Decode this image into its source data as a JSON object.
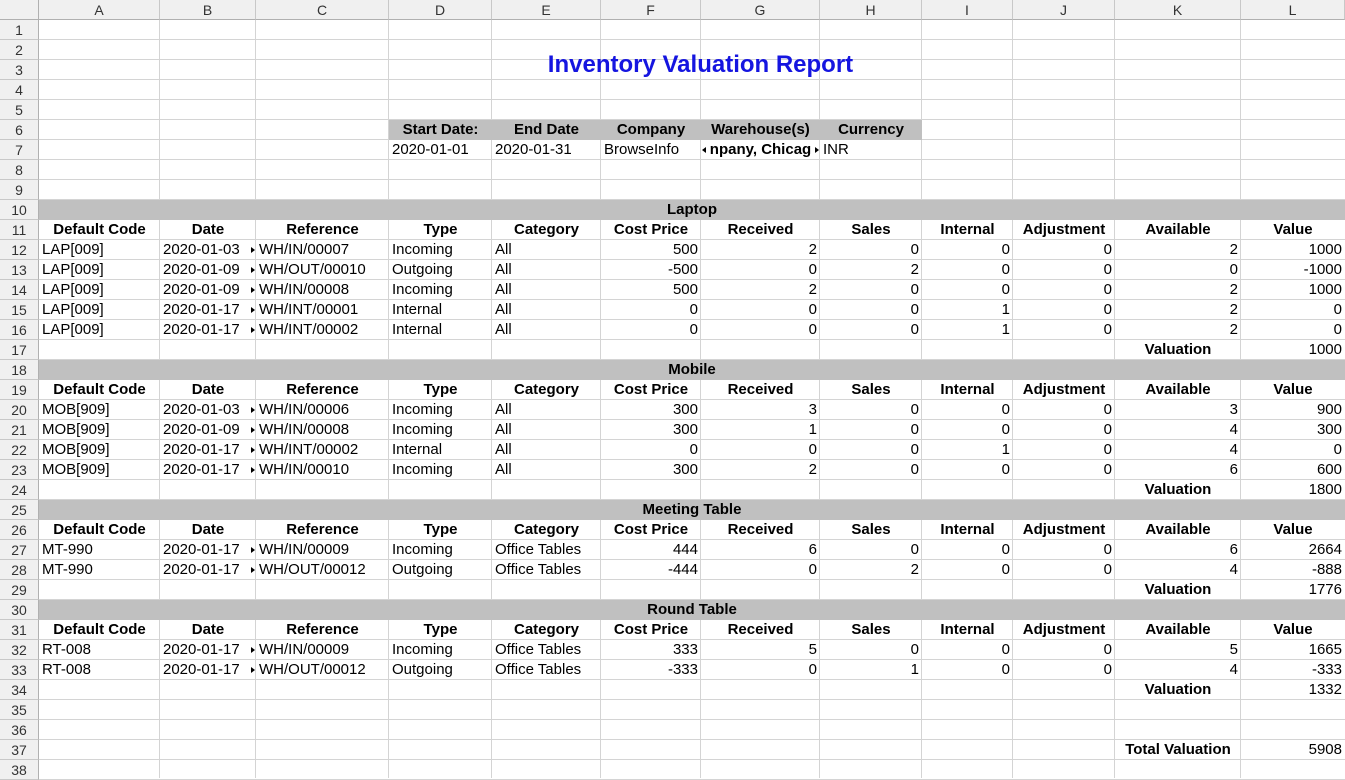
{
  "columns": [
    "A",
    "B",
    "C",
    "D",
    "E",
    "F",
    "G",
    "H",
    "I",
    "J",
    "K",
    "L"
  ],
  "row_count": 38,
  "title": "Inventory Valuation Report",
  "params": {
    "headers": [
      "Start Date:",
      "End Date",
      "Company",
      "Warehouse(s)",
      "Currency"
    ],
    "values": [
      "2020-01-01",
      "2020-01-31",
      "BrowseInfo",
      "npany, Chicag",
      "INR"
    ]
  },
  "table_headers": [
    "Default Code",
    "Date",
    "Reference",
    "Type",
    "Category",
    "Cost Price",
    "Received",
    "Sales",
    "Internal",
    "Adjustment",
    "Available",
    "Value"
  ],
  "valuation_label": "Valuation",
  "total_label": "Total Valuation",
  "total_value": "5908",
  "groups": [
    {
      "name": "Laptop",
      "valuation": "1000",
      "rows": [
        [
          "LAP[009]",
          "2020-01-03",
          "WH/IN/00007",
          "Incoming",
          "All",
          "500",
          "2",
          "0",
          "0",
          "0",
          "2",
          "1000"
        ],
        [
          "LAP[009]",
          "2020-01-09",
          "WH/OUT/00010",
          "Outgoing",
          "All",
          "-500",
          "0",
          "2",
          "0",
          "0",
          "0",
          "-1000"
        ],
        [
          "LAP[009]",
          "2020-01-09",
          "WH/IN/00008",
          "Incoming",
          "All",
          "500",
          "2",
          "0",
          "0",
          "0",
          "2",
          "1000"
        ],
        [
          "LAP[009]",
          "2020-01-17",
          "WH/INT/00001",
          "Internal",
          "All",
          "0",
          "0",
          "0",
          "1",
          "0",
          "2",
          "0"
        ],
        [
          "LAP[009]",
          "2020-01-17",
          "WH/INT/00002",
          "Internal",
          "All",
          "0",
          "0",
          "0",
          "1",
          "0",
          "2",
          "0"
        ]
      ]
    },
    {
      "name": "Mobile",
      "valuation": "1800",
      "rows": [
        [
          "MOB[909]",
          "2020-01-03",
          "WH/IN/00006",
          "Incoming",
          "All",
          "300",
          "3",
          "0",
          "0",
          "0",
          "3",
          "900"
        ],
        [
          "MOB[909]",
          "2020-01-09",
          "WH/IN/00008",
          "Incoming",
          "All",
          "300",
          "1",
          "0",
          "0",
          "0",
          "4",
          "300"
        ],
        [
          "MOB[909]",
          "2020-01-17",
          "WH/INT/00002",
          "Internal",
          "All",
          "0",
          "0",
          "0",
          "1",
          "0",
          "4",
          "0"
        ],
        [
          "MOB[909]",
          "2020-01-17",
          "WH/IN/00010",
          "Incoming",
          "All",
          "300",
          "2",
          "0",
          "0",
          "0",
          "6",
          "600"
        ]
      ]
    },
    {
      "name": "Meeting Table",
      "valuation": "1776",
      "rows": [
        [
          "MT-990",
          "2020-01-17",
          "WH/IN/00009",
          "Incoming",
          "Office Tables",
          "444",
          "6",
          "0",
          "0",
          "0",
          "6",
          "2664"
        ],
        [
          "MT-990",
          "2020-01-17",
          "WH/OUT/00012",
          "Outgoing",
          "Office Tables",
          "-444",
          "0",
          "2",
          "0",
          "0",
          "4",
          "-888"
        ]
      ]
    },
    {
      "name": "Round Table",
      "valuation": "1332",
      "rows": [
        [
          "RT-008",
          "2020-01-17",
          "WH/IN/00009",
          "Incoming",
          "Office Tables",
          "333",
          "5",
          "0",
          "0",
          "0",
          "5",
          "1665"
        ],
        [
          "RT-008",
          "2020-01-17",
          "WH/OUT/00012",
          "Outgoing",
          "Office Tables",
          "-333",
          "0",
          "1",
          "0",
          "0",
          "4",
          "-333"
        ]
      ]
    }
  ]
}
